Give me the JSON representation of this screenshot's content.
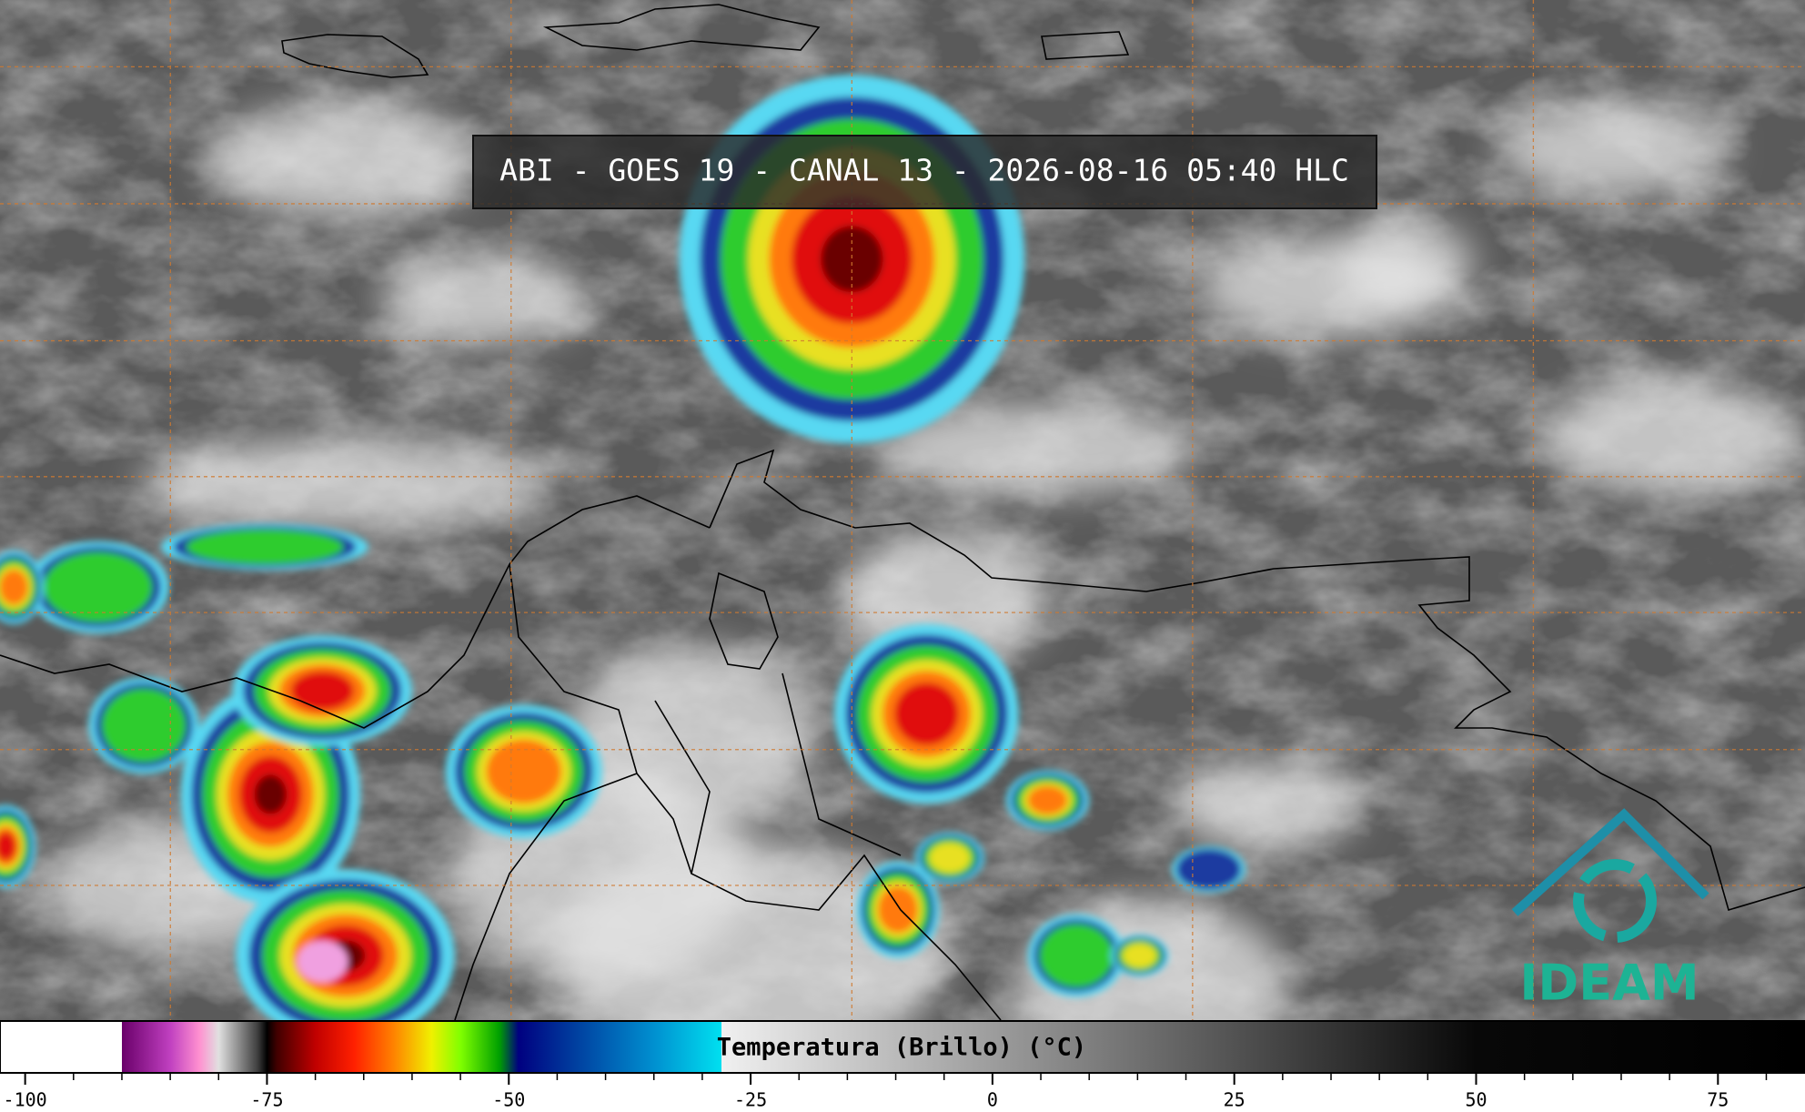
{
  "header": {
    "title": "ABI - GOES 19 - CANAL 13 - 2026-08-16 05:40 HLC"
  },
  "logo": {
    "text": "IDEAM"
  },
  "colorbar": {
    "label": "Temperatura (Brillo) (°C)",
    "xlim": [
      -102.6,
      84
    ],
    "xticks": [
      -100,
      -75,
      -50,
      -25,
      0,
      25,
      50,
      75
    ],
    "minor_xticks": [
      -95,
      -90,
      -85,
      -80,
      -70,
      -65,
      -60,
      -55,
      -45,
      -40,
      -35,
      -30,
      -20,
      -15,
      -10,
      -5,
      5,
      10,
      15,
      20,
      30,
      35,
      40,
      45,
      55,
      60,
      65,
      70,
      80
    ],
    "colormap": [
      {
        "value": -90,
        "color": "#ffffff"
      },
      {
        "value": -90,
        "color": "#6a006a"
      },
      {
        "value": -85,
        "color": "#c040c0"
      },
      {
        "value": -82,
        "color": "#ff90d0"
      },
      {
        "value": -80,
        "color": "#e0e0e0"
      },
      {
        "value": -76,
        "color": "#404040"
      },
      {
        "value": -75,
        "color": "#000000"
      },
      {
        "value": -74,
        "color": "#400000"
      },
      {
        "value": -70,
        "color": "#c00000"
      },
      {
        "value": -66,
        "color": "#ff2000"
      },
      {
        "value": -62,
        "color": "#ff8000"
      },
      {
        "value": -58,
        "color": "#f0f000"
      },
      {
        "value": -55,
        "color": "#80ff00"
      },
      {
        "value": -51,
        "color": "#00a000"
      },
      {
        "value": -49,
        "color": "#000080"
      },
      {
        "value": -43,
        "color": "#0040a0"
      },
      {
        "value": -35,
        "color": "#0090d0"
      },
      {
        "value": -28,
        "color": "#00e0f0"
      },
      {
        "value": -28,
        "color": "#f0f0f0"
      },
      {
        "value": 50,
        "color": "#080808"
      },
      {
        "value": 84,
        "color": "#000000"
      }
    ]
  }
}
